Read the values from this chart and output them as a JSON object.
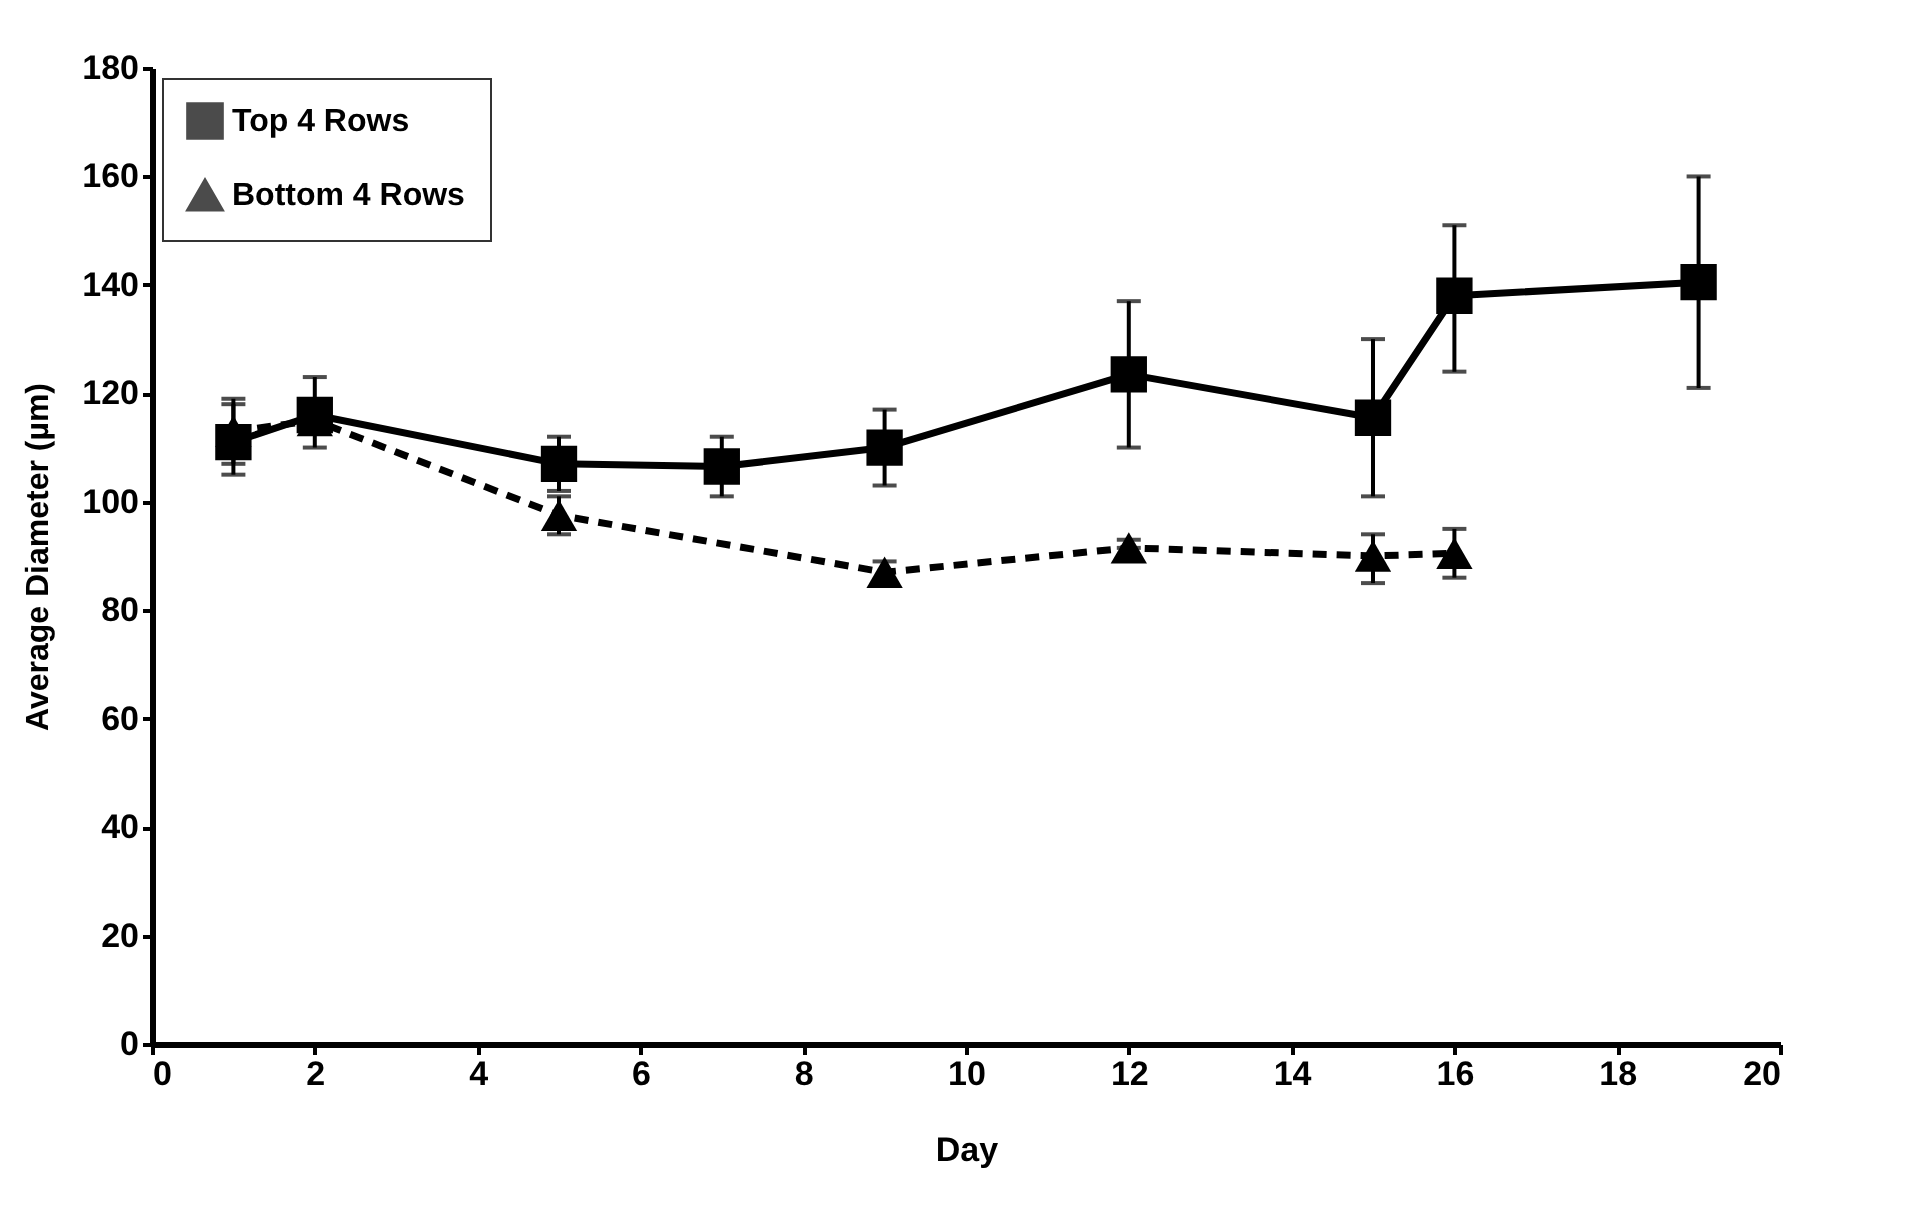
{
  "chart_data": {
    "type": "line",
    "xlabel": "Day",
    "ylabel": "Average Diameter (µm)",
    "xlim": [
      0,
      20
    ],
    "xticks": [
      0,
      2,
      4,
      6,
      8,
      10,
      12,
      14,
      16,
      18,
      20
    ],
    "ylim": [
      0,
      180
    ],
    "yticks": [
      0,
      20,
      40,
      60,
      80,
      100,
      120,
      140,
      160,
      180
    ],
    "grid": false,
    "legend": "top left",
    "series": [
      {
        "name": "Top 4 Rows",
        "color": "#000000",
        "marker": "square",
        "line_style": "solid",
        "x": [
          1,
          2,
          5,
          7,
          9,
          12,
          15,
          16,
          19
        ],
        "values": [
          111,
          116,
          107,
          106.5,
          110,
          123.5,
          115.5,
          138,
          140.5
        ],
        "errors": [
          [
            105,
            119
          ],
          [
            110,
            123
          ],
          [
            102,
            112
          ],
          [
            101,
            112
          ],
          [
            103,
            117
          ],
          [
            110,
            137
          ],
          [
            101,
            130
          ],
          [
            124,
            151
          ],
          [
            121,
            160
          ]
        ]
      },
      {
        "name": "Bottom 4 Rows",
        "color": "#000000",
        "marker": "triangle",
        "line_style": "dashed",
        "x": [
          1,
          2,
          5,
          9,
          12,
          15,
          16
        ],
        "values": [
          113,
          115,
          97.5,
          87,
          91.5,
          90,
          90.5
        ],
        "errors": [
          [
            107,
            118
          ],
          null,
          [
            94,
            101
          ],
          [
            85,
            89
          ],
          [
            91.5,
            93
          ],
          [
            85,
            94
          ],
          [
            86,
            95
          ]
        ]
      }
    ]
  }
}
